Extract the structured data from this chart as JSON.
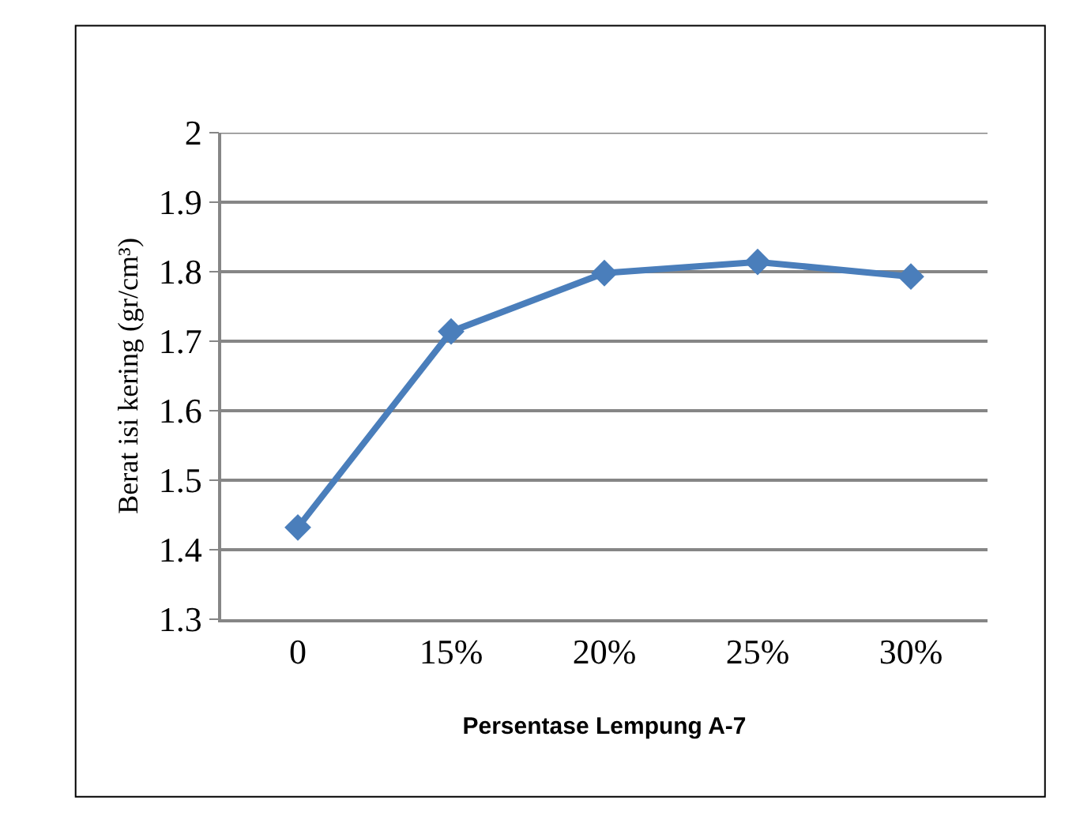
{
  "chart_data": {
    "type": "line",
    "xlabel": "Persentase Lempung A-7",
    "ylabel": "Berat isi kering (gr/cm³)",
    "categories": [
      "0",
      "15%",
      "20%",
      "25%",
      "30%"
    ],
    "series": [
      {
        "color": "#4a7ebb",
        "values": [
          1.432,
          1.714,
          1.798,
          1.814,
          1.793
        ]
      }
    ],
    "ylim": [
      1.3,
      2
    ],
    "yticks": [
      1.3,
      1.4,
      1.5,
      1.6,
      1.7,
      1.8,
      1.9,
      2
    ],
    "grid": "y",
    "legend": false,
    "marker": "diamond",
    "line_style": "solid"
  }
}
